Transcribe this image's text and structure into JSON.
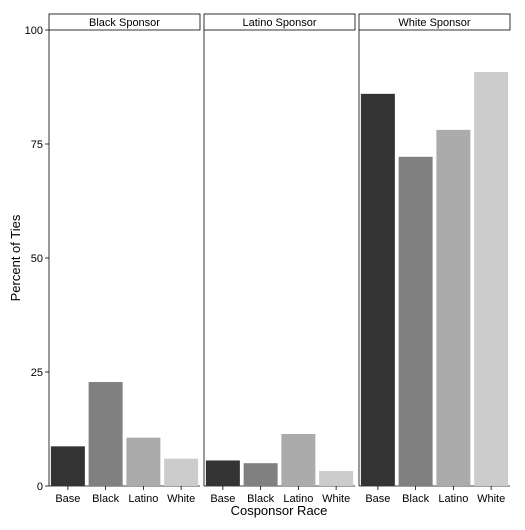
{
  "chart_data": {
    "type": "bar",
    "facets": [
      "Black Sponsor",
      "Latino Sponsor",
      "White Sponsor"
    ],
    "categories": [
      "Base",
      "Black",
      "Latino",
      "White"
    ],
    "panels": [
      {
        "facet": "Black Sponsor",
        "values": [
          8.7,
          22.8,
          10.6,
          6.0
        ]
      },
      {
        "facet": "Latino Sponsor",
        "values": [
          5.6,
          5.0,
          11.4,
          3.3
        ]
      },
      {
        "facet": "White Sponsor",
        "values": [
          86.0,
          72.2,
          78.1,
          90.8
        ]
      }
    ],
    "colors": [
      "#333333",
      "#808080",
      "#ababab",
      "#cccccc"
    ],
    "ylim": [
      0,
      100
    ],
    "yticks": [
      0,
      25,
      50,
      75,
      100
    ],
    "xlabel": "Cosponsor Race",
    "ylabel": "Percent of Ties"
  }
}
